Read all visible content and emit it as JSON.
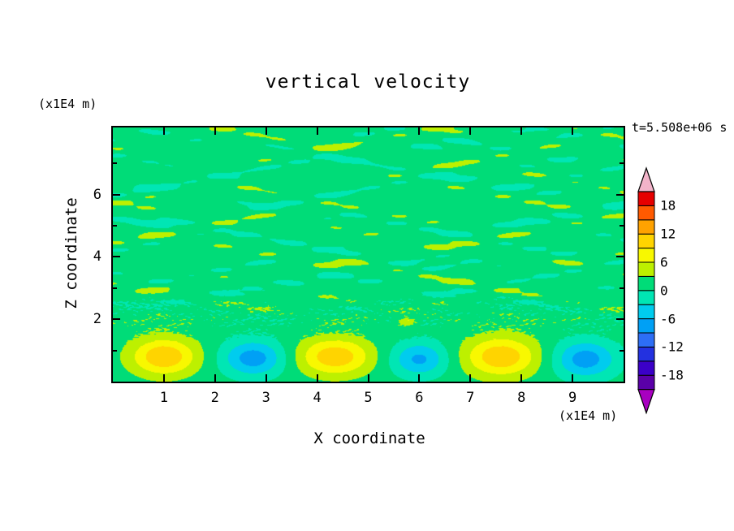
{
  "chart_data": {
    "type": "heatmap",
    "title": "vertical velocity",
    "xlabel": "X coordinate",
    "ylabel": "Z coordinate",
    "x_units": "(x1E4 m)",
    "z_units": "(x1E4 m)",
    "time": "t=5.508e+06 s",
    "xlim": [
      0,
      10
    ],
    "zlim": [
      0,
      8.15
    ],
    "x_ticks": [
      1,
      2,
      3,
      4,
      5,
      6,
      7,
      8,
      9
    ],
    "z_ticks": [
      2,
      4,
      6
    ],
    "z_minor_ticks": [
      1,
      3,
      5,
      7
    ],
    "levels": {
      "min": -21,
      "step": 3,
      "count": 14
    },
    "colorbar_labels": [
      18,
      12,
      6,
      0,
      -6,
      -12,
      -18
    ],
    "colors_bottom_to_top": [
      "#5a00a8",
      "#3b00c8",
      "#2331e0",
      "#2d6ef5",
      "#00a0f5",
      "#00ccee",
      "#00e6b4",
      "#00dc78",
      "#bdf000",
      "#f8f800",
      "#ffd400",
      "#ffa200",
      "#ff5a00",
      "#e60000"
    ],
    "arrow_top_color": "#f2b3c9",
    "arrow_bottom_color": "#a800c0",
    "field": {
      "description": "Contour-filled vertical velocity field: weak near-zero horizontal streaks aloft (between about -3 and +6), fine speckle band near z=2, and alternating strong updraft (yellow, about +10) and downdraft (blue, about -9) cells near the surface.",
      "background_value": 1.3,
      "streak_amp": 2.0,
      "speckle_amp": 1.7,
      "surface_cells": [
        {
          "x": 1.0,
          "z": 0.8,
          "amp": 10.5,
          "sx": 0.45,
          "sz": 0.42
        },
        {
          "x": 2.75,
          "z": 0.75,
          "amp": -9.0,
          "sx": 0.42,
          "sz": 0.4
        },
        {
          "x": 4.35,
          "z": 0.8,
          "amp": 10.0,
          "sx": 0.5,
          "sz": 0.42
        },
        {
          "x": 6.0,
          "z": 0.72,
          "amp": -8.0,
          "sx": 0.38,
          "sz": 0.38
        },
        {
          "x": 7.6,
          "z": 0.8,
          "amp": 10.2,
          "sx": 0.5,
          "sz": 0.45
        },
        {
          "x": 9.25,
          "z": 0.72,
          "amp": -9.0,
          "sx": 0.42,
          "sz": 0.42
        },
        {
          "x": 5.75,
          "z": 1.95,
          "amp": 4.5,
          "sx": 0.12,
          "sz": 0.1
        }
      ]
    }
  }
}
